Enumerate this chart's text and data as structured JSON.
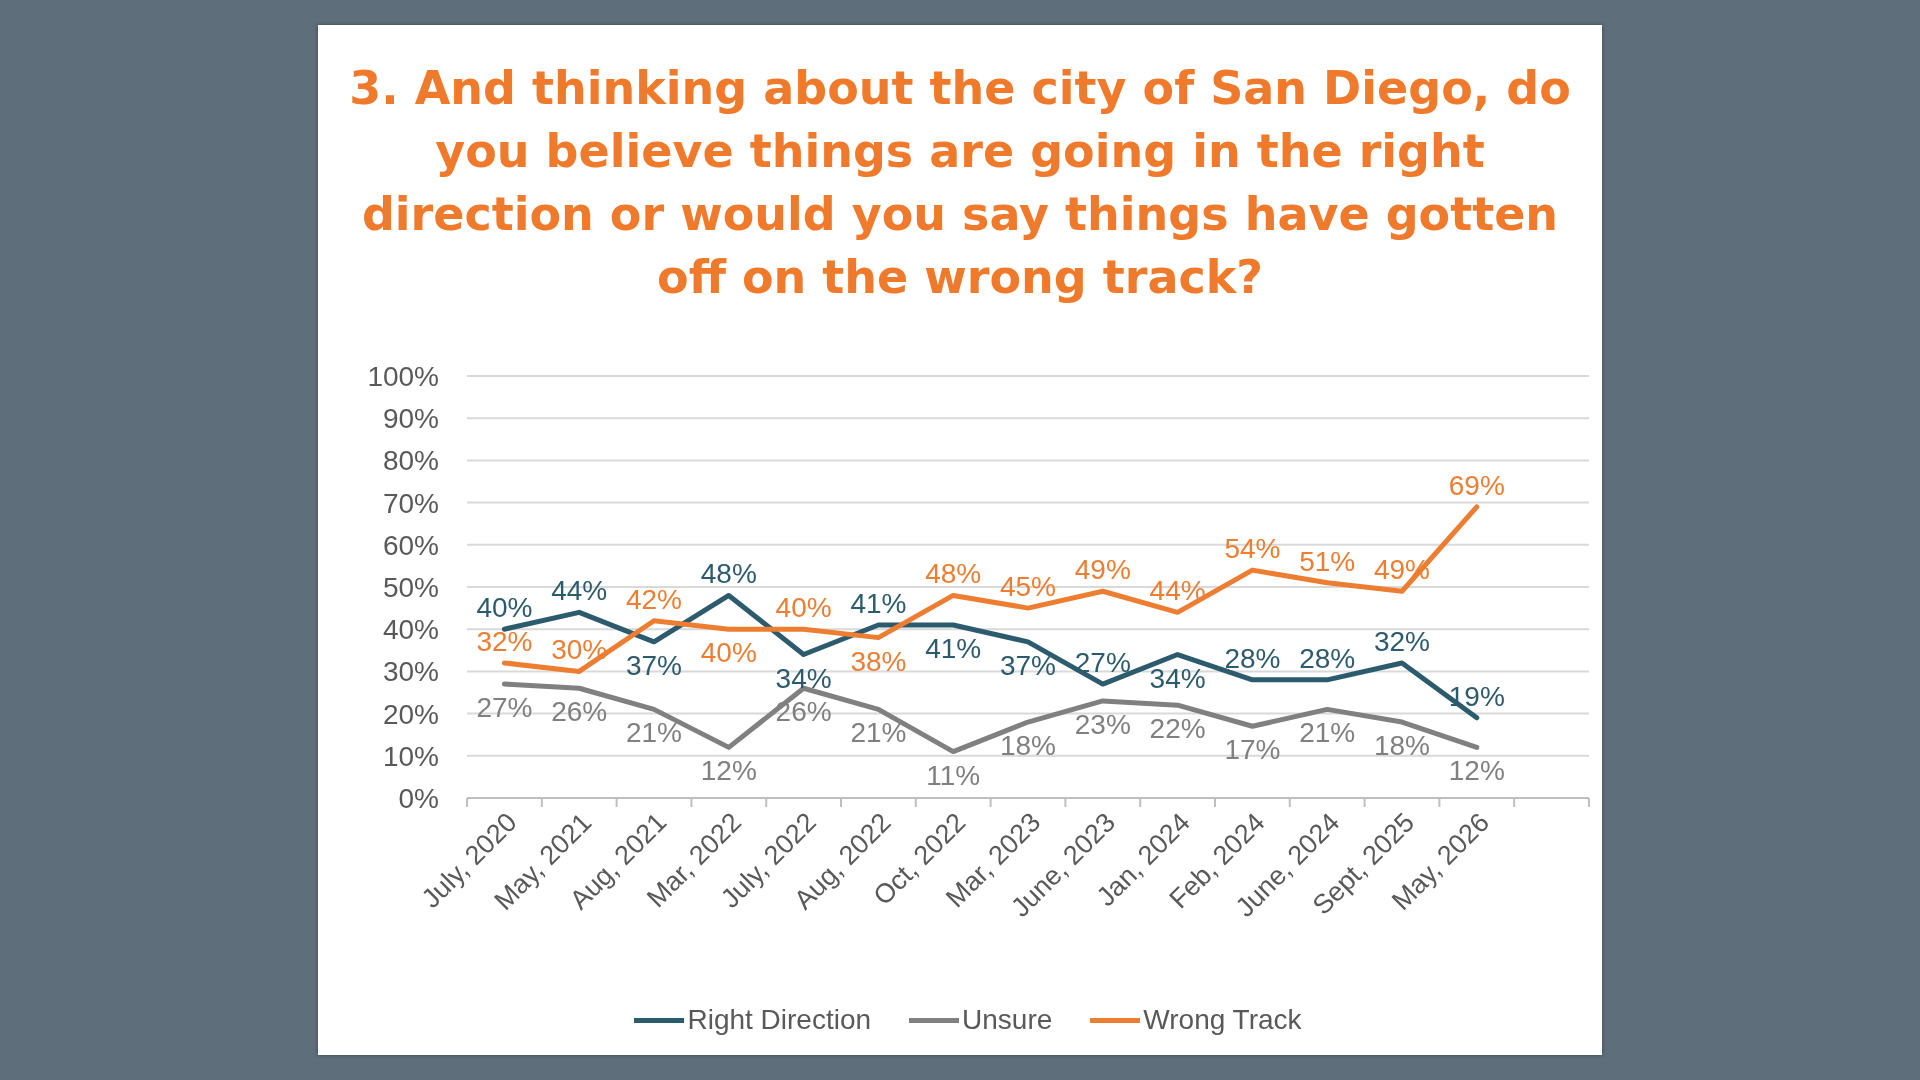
{
  "chart_data": {
    "type": "line",
    "title": "3. And thinking about the city of San Diego, do you believe things are going in the right direction or would you say things have gotten off on the wrong track?",
    "categories": [
      "July, 2020",
      "May, 2021",
      "Aug, 2021",
      "Mar, 2022",
      "July, 2022",
      "Aug, 2022",
      "Oct, 2022",
      "Mar, 2023",
      "June, 2023",
      "Jan, 2024",
      "Feb, 2024",
      "June, 2024",
      "Sept, 2025",
      "May, 2026",
      null
    ],
    "series": [
      {
        "name": "Right Direction",
        "color": "#2d5b6e",
        "values": [
          40,
          44,
          37,
          48,
          34,
          41,
          41,
          37,
          27,
          34,
          28,
          28,
          32,
          19,
          null
        ],
        "value_labels": [
          "40%",
          "44%",
          "37%",
          "48%",
          "34%",
          "41%",
          "41%",
          "37%",
          "27%",
          "34%",
          "28%",
          "28%",
          "32%",
          "19%",
          null
        ]
      },
      {
        "name": "Unsure",
        "color": "#808080",
        "values": [
          27,
          26,
          21,
          12,
          26,
          21,
          11,
          18,
          23,
          22,
          17,
          21,
          18,
          12,
          null
        ],
        "value_labels": [
          "27%",
          "26%",
          "21%",
          "12%",
          "26%",
          "21%",
          "11%",
          "18%",
          "23%",
          "22%",
          "17%",
          "21%",
          "18%",
          "12%",
          null
        ]
      },
      {
        "name": "Wrong Track",
        "color": "#ed7d31",
        "values": [
          32,
          30,
          42,
          40,
          40,
          38,
          48,
          45,
          49,
          44,
          54,
          51,
          49,
          69,
          null
        ],
        "value_labels": [
          "32%",
          "30%",
          "42%",
          "40%",
          "40%",
          "38%",
          "48%",
          "45%",
          "49%",
          "44%",
          "54%",
          "51%",
          "49%",
          "69%",
          null
        ]
      }
    ],
    "ylim": [
      0,
      100
    ],
    "yticks": [
      {
        "value": 0,
        "label": "0%"
      },
      {
        "value": 10,
        "label": "10%"
      },
      {
        "value": 20,
        "label": "20%"
      },
      {
        "value": 30,
        "label": "30%"
      },
      {
        "value": 40,
        "label": "40%"
      },
      {
        "value": 50,
        "label": "50%"
      },
      {
        "value": 60,
        "label": "60%"
      },
      {
        "value": 70,
        "label": "70%"
      },
      {
        "value": 80,
        "label": "80%"
      },
      {
        "value": 90,
        "label": "90%"
      },
      {
        "value": 100,
        "label": "100%"
      }
    ],
    "grid": "y",
    "legend": "bottom"
  }
}
